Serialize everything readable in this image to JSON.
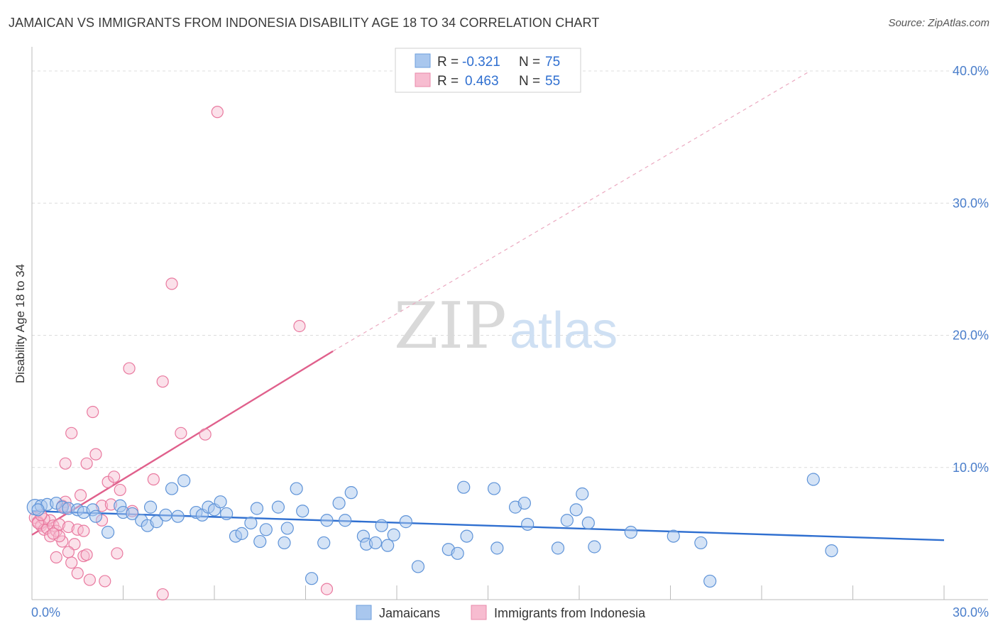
{
  "title": "JAMAICAN VS IMMIGRANTS FROM INDONESIA DISABILITY AGE 18 TO 34 CORRELATION CHART",
  "source": "Source: ZipAtlas.com",
  "watermark": {
    "zip": "ZIP",
    "atlas": "atlas"
  },
  "legend_top": [
    {
      "r_label": "R = ",
      "r_value": "-0.321",
      "n_label": "N = ",
      "n_value": "75",
      "color": "#a9c7ee",
      "stroke": "#6e9fdc"
    },
    {
      "r_label": "R = ",
      "r_value": "0.463",
      "n_label": "N = ",
      "n_value": "55",
      "color": "#f7bcd0",
      "stroke": "#e88aaa"
    }
  ],
  "legend_bottom": [
    "Jamaicans",
    "Immigrants from Indonesia"
  ],
  "colors": {
    "blue_fill": "#a9c7ee",
    "blue_stroke": "#5e93d8",
    "blue_line": "#2f6fd0",
    "pink_fill": "#f7bcd0",
    "pink_stroke": "#e9799f",
    "pink_line": "#e0608c",
    "tick": "#4a7ecb",
    "grid": "#dcdcdc"
  },
  "chart_data": {
    "type": "scatter",
    "title": "JAMAICAN VS IMMIGRANTS FROM INDONESIA DISABILITY AGE 18 TO 34 CORRELATION CHART",
    "xlabel": "",
    "ylabel": "Disability Age 18 to 34",
    "xlim": [
      0,
      30
    ],
    "ylim": [
      0,
      40
    ],
    "x_tick_labels": [
      "0.0%",
      "30.0%"
    ],
    "y_tick_labels": [
      "10.0%",
      "20.0%",
      "30.0%",
      "40.0%"
    ],
    "y_ticks": [
      10,
      20,
      30,
      40
    ],
    "grid": true,
    "series": [
      {
        "name": "Jamaicans",
        "trend": {
          "x": [
            0,
            30
          ],
          "y": [
            6.7,
            4.5
          ]
        },
        "points": [
          [
            0.1,
            7.0
          ],
          [
            0.3,
            7.1
          ],
          [
            0.5,
            7.2
          ],
          [
            0.8,
            7.3
          ],
          [
            1.0,
            7.0
          ],
          [
            1.2,
            6.9
          ],
          [
            1.5,
            6.8
          ],
          [
            1.7,
            6.6
          ],
          [
            2.0,
            6.8
          ],
          [
            2.1,
            6.3
          ],
          [
            2.5,
            5.1
          ],
          [
            2.9,
            7.1
          ],
          [
            3.0,
            6.6
          ],
          [
            3.3,
            6.5
          ],
          [
            3.6,
            6.0
          ],
          [
            3.8,
            5.6
          ],
          [
            3.9,
            7.0
          ],
          [
            4.1,
            5.9
          ],
          [
            4.4,
            6.4
          ],
          [
            4.6,
            8.4
          ],
          [
            4.8,
            6.3
          ],
          [
            5.0,
            9.0
          ],
          [
            5.4,
            6.6
          ],
          [
            5.6,
            6.4
          ],
          [
            5.8,
            7.0
          ],
          [
            6.0,
            6.8
          ],
          [
            6.2,
            7.4
          ],
          [
            6.4,
            6.5
          ],
          [
            6.7,
            4.8
          ],
          [
            6.9,
            5.0
          ],
          [
            7.2,
            5.8
          ],
          [
            7.4,
            6.9
          ],
          [
            7.5,
            4.4
          ],
          [
            7.7,
            5.3
          ],
          [
            8.1,
            7.0
          ],
          [
            8.3,
            4.3
          ],
          [
            8.4,
            5.4
          ],
          [
            8.7,
            8.4
          ],
          [
            8.9,
            6.7
          ],
          [
            9.2,
            1.6
          ],
          [
            9.6,
            4.3
          ],
          [
            9.7,
            6.0
          ],
          [
            10.1,
            7.3
          ],
          [
            10.3,
            6.0
          ],
          [
            10.5,
            8.1
          ],
          [
            10.9,
            4.8
          ],
          [
            11.0,
            4.2
          ],
          [
            11.3,
            4.3
          ],
          [
            11.5,
            5.6
          ],
          [
            11.7,
            4.1
          ],
          [
            11.9,
            4.9
          ],
          [
            12.3,
            5.9
          ],
          [
            12.7,
            2.5
          ],
          [
            13.7,
            3.8
          ],
          [
            14.0,
            3.5
          ],
          [
            14.2,
            8.5
          ],
          [
            14.3,
            4.8
          ],
          [
            15.2,
            8.4
          ],
          [
            15.3,
            3.9
          ],
          [
            15.9,
            7.0
          ],
          [
            16.2,
            7.3
          ],
          [
            16.3,
            5.7
          ],
          [
            17.3,
            3.9
          ],
          [
            17.6,
            6.0
          ],
          [
            17.9,
            6.8
          ],
          [
            18.1,
            8.0
          ],
          [
            18.3,
            5.8
          ],
          [
            18.5,
            4.0
          ],
          [
            19.7,
            5.1
          ],
          [
            21.1,
            4.8
          ],
          [
            22.0,
            4.3
          ],
          [
            22.3,
            1.4
          ],
          [
            25.7,
            9.1
          ],
          [
            26.3,
            3.7
          ],
          [
            0.2,
            6.8
          ]
        ]
      },
      {
        "name": "Immigrants from Indonesia",
        "trend": {
          "x": [
            0,
            9.9
          ],
          "y": [
            4.9,
            18.8
          ]
        },
        "trend_dashed": {
          "x": [
            9.9,
            25.6
          ],
          "y": [
            18.8,
            40.0
          ]
        },
        "points": [
          [
            0.1,
            6.2
          ],
          [
            0.2,
            5.9
          ],
          [
            0.3,
            5.6
          ],
          [
            0.4,
            5.3
          ],
          [
            0.5,
            5.4
          ],
          [
            0.6,
            6.0
          ],
          [
            0.6,
            4.8
          ],
          [
            0.7,
            5.6
          ],
          [
            0.8,
            5.2
          ],
          [
            0.8,
            3.2
          ],
          [
            0.9,
            5.7
          ],
          [
            1.0,
            7.1
          ],
          [
            1.0,
            4.4
          ],
          [
            1.1,
            7.4
          ],
          [
            1.1,
            10.3
          ],
          [
            1.2,
            5.5
          ],
          [
            1.3,
            12.6
          ],
          [
            1.3,
            2.8
          ],
          [
            1.4,
            4.2
          ],
          [
            1.5,
            5.3
          ],
          [
            1.5,
            2.0
          ],
          [
            1.6,
            7.9
          ],
          [
            1.7,
            3.3
          ],
          [
            1.7,
            5.2
          ],
          [
            1.8,
            10.3
          ],
          [
            1.8,
            3.4
          ],
          [
            1.9,
            1.5
          ],
          [
            2.0,
            14.2
          ],
          [
            2.1,
            11.0
          ],
          [
            2.3,
            7.1
          ],
          [
            2.3,
            6.0
          ],
          [
            2.4,
            1.4
          ],
          [
            2.5,
            8.9
          ],
          [
            2.6,
            7.2
          ],
          [
            2.7,
            9.3
          ],
          [
            2.8,
            3.5
          ],
          [
            2.9,
            8.3
          ],
          [
            3.2,
            17.5
          ],
          [
            3.3,
            6.7
          ],
          [
            4.0,
            9.1
          ],
          [
            4.3,
            16.5
          ],
          [
            4.6,
            23.9
          ],
          [
            4.9,
            12.6
          ],
          [
            5.7,
            12.5
          ],
          [
            6.1,
            36.9
          ],
          [
            8.8,
            20.7
          ],
          [
            9.7,
            0.8
          ],
          [
            4.3,
            0.4
          ],
          [
            0.4,
            6.1
          ],
          [
            0.2,
            5.8
          ],
          [
            0.9,
            4.8
          ],
          [
            1.2,
            3.6
          ],
          [
            0.3,
            6.4
          ],
          [
            1.1,
            6.9
          ],
          [
            0.7,
            5.0
          ]
        ]
      }
    ]
  }
}
